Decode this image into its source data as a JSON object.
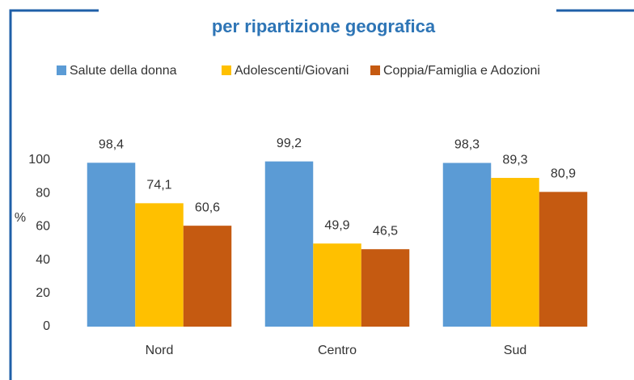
{
  "chart_data": {
    "type": "bar",
    "title": "per ripartizione geografica",
    "y_label": "%",
    "categories": [
      "Nord",
      "Centro",
      "Sud"
    ],
    "series": [
      {
        "name": "Salute della donna",
        "color": "#5b9bd5",
        "values": [
          98.4,
          99.2,
          98.3
        ],
        "value_labels": [
          "98,4",
          "99,2",
          "98,3"
        ]
      },
      {
        "name": "Adolescenti/Giovani",
        "color": "#ffc000",
        "values": [
          74.1,
          49.9,
          89.3
        ],
        "value_labels": [
          "74,1",
          "49,9",
          "89,3"
        ]
      },
      {
        "name": "Coppia/Famiglia e Adozioni",
        "color": "#c55a11",
        "values": [
          60.6,
          46.5,
          80.9
        ],
        "value_labels": [
          "60,6",
          "46,5",
          "80,9"
        ]
      }
    ],
    "ylim": [
      0,
      100
    ],
    "yticks": [
      0,
      20,
      40,
      60,
      80,
      100
    ],
    "legend": "top"
  }
}
